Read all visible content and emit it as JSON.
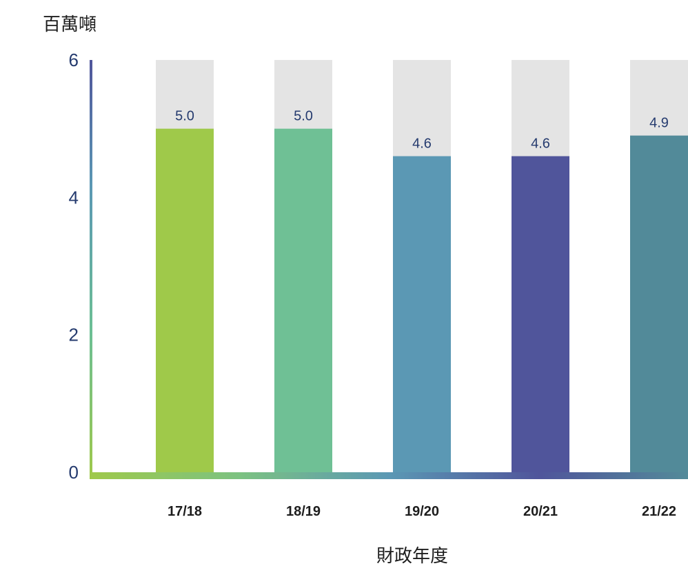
{
  "chart_data": {
    "type": "bar",
    "ylabel": "百萬噸",
    "xlabel": "財政年度",
    "categories": [
      "17/18",
      "18/19",
      "19/20",
      "20/21",
      "21/22"
    ],
    "values": [
      5.0,
      5.0,
      4.6,
      4.6,
      4.9
    ],
    "value_labels": [
      "5.0",
      "5.0",
      "4.6",
      "4.6",
      "4.9"
    ],
    "ylim": [
      0,
      6
    ],
    "yticks": [
      "0",
      "2",
      "4",
      "6"
    ],
    "grid": false,
    "background_bars": true,
    "colors": {
      "bars": [
        "#9fc94a",
        "#6fc095",
        "#5b98b4",
        "#50559b",
        "#528a99"
      ],
      "background_bar": "#e4e4e4",
      "text_label": "#243a6e",
      "axis_gradient": [
        "#9fc94a",
        "#6cbf94",
        "#5b98b4",
        "#50559b",
        "#528a99"
      ]
    }
  }
}
